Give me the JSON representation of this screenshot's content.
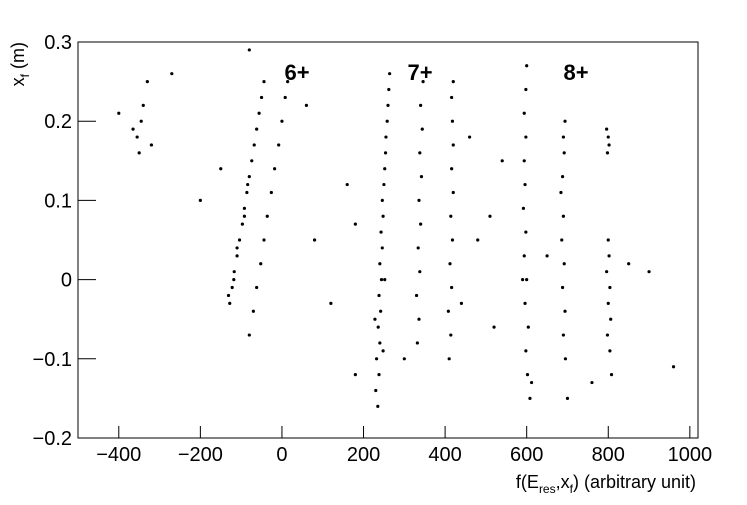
{
  "chart_data": {
    "type": "scatter",
    "xlabel_parts": [
      "f(E",
      "res",
      ",x",
      "f",
      ") (arbitrary unit)"
    ],
    "ylabel_parts": [
      "x",
      "f",
      " (m)"
    ],
    "annotations": [
      "6+",
      "7+",
      "8+"
    ],
    "color": "#000000",
    "xlim": [
      -500,
      1020
    ],
    "ylim": [
      -0.2,
      0.3
    ],
    "xticks": [
      {
        "value": -400,
        "label": "−400"
      },
      {
        "value": -200,
        "label": "−200"
      },
      0,
      200,
      400,
      600,
      800,
      1000
    ],
    "yticks": [
      {
        "value": -0.2,
        "label": "−0.2"
      },
      {
        "value": -0.1,
        "label": "−0.1"
      },
      0,
      0.1,
      0.2,
      0.3
    ],
    "x": [
      -128,
      -122,
      -117,
      -110,
      -104,
      -97,
      -92,
      -86,
      -80,
      -74,
      -68,
      -62,
      -56,
      -50,
      -44,
      -131,
      -118,
      -110,
      -92,
      -84,
      -80,
      -70,
      -62,
      -52,
      -44,
      -36,
      -26,
      -18,
      -8,
      0,
      8,
      14,
      235,
      230,
      238,
      232,
      240,
      236,
      242,
      238,
      244,
      240,
      246,
      243,
      248,
      246,
      250,
      252,
      254,
      255,
      258,
      260,
      262,
      264,
      228,
      252,
      248,
      332,
      336,
      330,
      338,
      334,
      340,
      336,
      342,
      338,
      344,
      340,
      346,
      410,
      414,
      408,
      416,
      412,
      418,
      414,
      420,
      416,
      420,
      418,
      416,
      420,
      608,
      602,
      598,
      604,
      596,
      600,
      594,
      598,
      592,
      596,
      594,
      598,
      594,
      598,
      600,
      612,
      590,
      695,
      690,
      694,
      688,
      692,
      686,
      690,
      684,
      688,
      692,
      690,
      694,
      808,
      804,
      798,
      806,
      800,
      804,
      796,
      802,
      800,
      798,
      802,
      800,
      796,
      -355,
      -345,
      -350,
      -340,
      -330,
      -320,
      -365,
      -400,
      -270,
      -200,
      -150,
      80,
      120,
      160,
      180,
      300,
      480,
      510,
      520,
      650,
      760,
      850,
      900,
      960,
      440,
      540,
      60,
      -80,
      180,
      700,
      460
    ],
    "values": [
      -0.03,
      -0.01,
      0.01,
      0.03,
      0.05,
      0.07,
      0.09,
      0.11,
      0.13,
      0.15,
      0.17,
      0.19,
      0.21,
      0.23,
      0.25,
      -0.02,
      0,
      0.04,
      0.08,
      0.12,
      -0.07,
      -0.04,
      -0.01,
      0.02,
      0.05,
      0.08,
      0.11,
      0.14,
      0.17,
      0.2,
      0.23,
      0.25,
      -0.16,
      -0.14,
      -0.12,
      -0.1,
      -0.08,
      -0.06,
      -0.04,
      -0.02,
      0,
      0.02,
      0.04,
      0.06,
      0.08,
      0.1,
      0.12,
      0.14,
      0.16,
      0.18,
      0.2,
      0.22,
      0.24,
      0.26,
      -0.05,
      0,
      -0.09,
      -0.08,
      -0.05,
      -0.02,
      0.01,
      0.04,
      0.07,
      0.1,
      0.13,
      0.16,
      0.19,
      0.22,
      0.25,
      -0.1,
      -0.07,
      -0.04,
      -0.01,
      0.02,
      0.05,
      0.08,
      0.11,
      0.14,
      0.17,
      0.2,
      0.23,
      0.25,
      -0.15,
      -0.12,
      -0.09,
      -0.06,
      -0.03,
      0,
      0.03,
      0.06,
      0.09,
      0.12,
      0.15,
      0.18,
      0.21,
      0.24,
      0.27,
      -0.13,
      0,
      -0.1,
      -0.07,
      -0.04,
      -0.01,
      0.02,
      0.05,
      0.08,
      0.11,
      0.13,
      0.16,
      0.18,
      0.2,
      -0.12,
      -0.09,
      -0.07,
      -0.05,
      -0.03,
      -0.01,
      0.01,
      0.03,
      0.05,
      0.16,
      0.17,
      0.18,
      0.19,
      0.18,
      0.2,
      0.16,
      0.22,
      0.25,
      0.17,
      0.19,
      0.21,
      0.26,
      0.1,
      0.14,
      0.05,
      -0.03,
      0.12,
      0.07,
      -0.1,
      0.05,
      0.08,
      -0.06,
      0.03,
      -0.13,
      0.02,
      0.01,
      -0.11,
      -0.03,
      0.15,
      0.22,
      0.29,
      -0.12,
      -0.15,
      0.18
    ]
  }
}
